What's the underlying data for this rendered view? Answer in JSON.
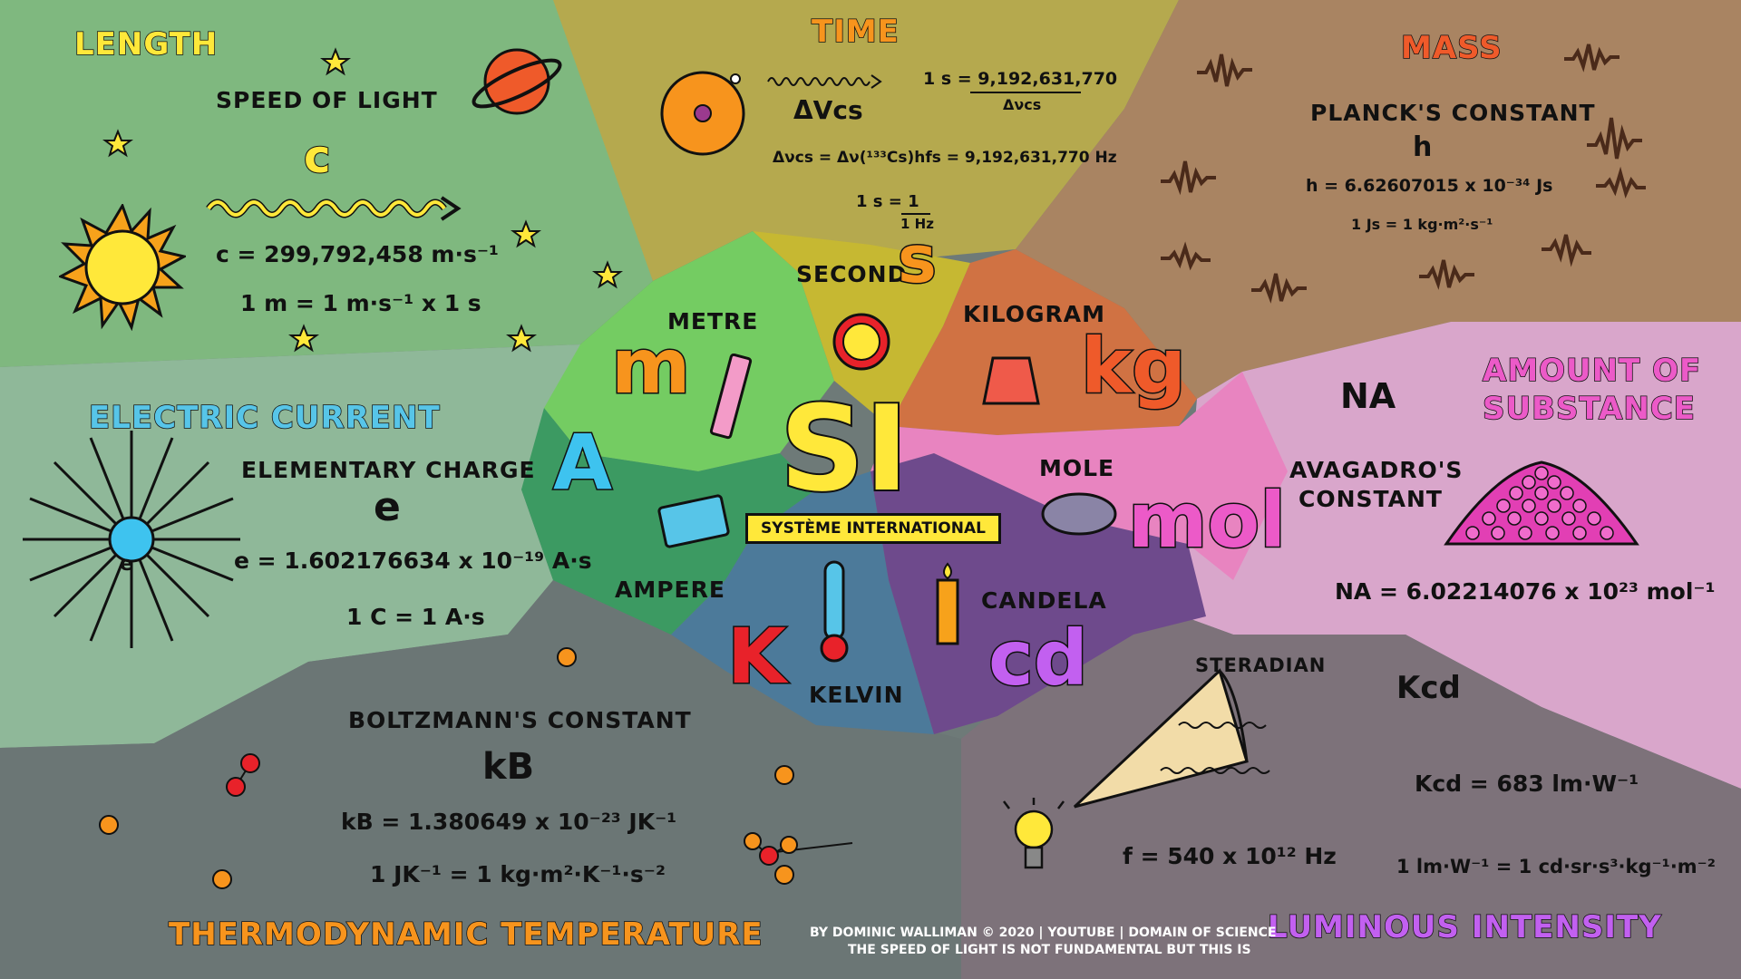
{
  "colors": {
    "length": "#7fb87f",
    "time": "#b5a94e",
    "mass": "#a98462",
    "current": "#8fb899",
    "substance": "#d9a6cb",
    "temperature": "#6b7675",
    "luminous": "#7d727a",
    "metre": "#74cc62",
    "second": "#c6b832",
    "kilogram": "#d07243",
    "ampere": "#3c9a62",
    "kelvin": "#4c7a9a",
    "candela": "#6e4a8c",
    "mole": "#e884c0",
    "accent_yellow": "#ffe83a"
  },
  "center": {
    "title": "SI",
    "subtitle": "SYSTÈME INTERNATIONAL"
  },
  "length": {
    "heading": "LENGTH",
    "constant_name": "SPEED OF LIGHT",
    "symbol": "c",
    "equation": "c = 299,792,458 m·s⁻¹",
    "definition": "1 m = 1 m·s⁻¹ x 1 s",
    "unit_name": "METRE",
    "unit_symbol": "m",
    "icon": "sun-icon"
  },
  "time": {
    "heading": "TIME",
    "transition": "ΔVcs",
    "equation_top": "1 s = 9,192,631,770",
    "equation_bottom": "Δνcs",
    "hyperfine": "Δνcs = Δν(¹³³Cs)hfs = 9,192,631,770 Hz",
    "definition_top": "1 s = 1",
    "definition_bottom": "1 Hz",
    "unit_name": "SECOND",
    "unit_symbol": "s",
    "icon": "cesium-atom-icon"
  },
  "mass": {
    "heading": "MASS",
    "constant_name": "PLANCK'S CONSTANT",
    "symbol": "h",
    "equation": "h = 6.62607015 x 10⁻³⁴ Js",
    "definition": "1 Js = 1 kg·m²·s⁻¹",
    "unit_name": "KILOGRAM",
    "unit_symbol": "kg",
    "icon": "wave-icon"
  },
  "current": {
    "heading": "ELECTRIC CURRENT",
    "constant_name": "ELEMENTARY CHARGE",
    "symbol": "e",
    "equation": "e = 1.602176634 x 10⁻¹⁹ A·s",
    "definition": "1 C = 1 A·s",
    "unit_name": "AMPERE",
    "unit_symbol": "A",
    "electron_label": "e",
    "icon": "electron-icon"
  },
  "substance": {
    "heading_line1": "AMOUNT OF",
    "heading_line2": "SUBSTANCE",
    "symbol": "NA",
    "constant_name_line1": "AVAGADRO'S",
    "constant_name_line2": "CONSTANT",
    "equation": "NA = 6.02214076 x 10²³ mol⁻¹",
    "unit_name": "MOLE",
    "unit_symbol": "mol",
    "icon": "particle-pile-icon"
  },
  "temperature": {
    "heading": "THERMODYNAMIC TEMPERATURE",
    "constant_name": "BOLTZMANN'S CONSTANT",
    "symbol": "kB",
    "equation": "kB = 1.380649 x 10⁻²³ JK⁻¹",
    "definition": "1 JK⁻¹ = 1 kg·m²·K⁻¹·s⁻²",
    "unit_name": "KELVIN",
    "unit_symbol": "K",
    "icon": "molecule-icon"
  },
  "luminous": {
    "heading": "LUMINOUS INTENSITY",
    "steradian": "STERADIAN",
    "symbol": "Kcd",
    "equation": "Kcd = 683 lm·W⁻¹",
    "frequency": "f = 540 x 10¹² Hz",
    "definition": "1 lm·W⁻¹ = 1 cd·sr·s³·kg⁻¹·m⁻²",
    "unit_name": "CANDELA",
    "unit_symbol": "cd",
    "icon": "light-bulb-icon"
  },
  "credits": {
    "line1": "BY DOMINIC WALLIMAN  © 2020 | YOUTUBE | DOMAIN OF SCIENCE",
    "line2": "THE SPEED OF LIGHT IS NOT FUNDAMENTAL BUT THIS IS"
  }
}
